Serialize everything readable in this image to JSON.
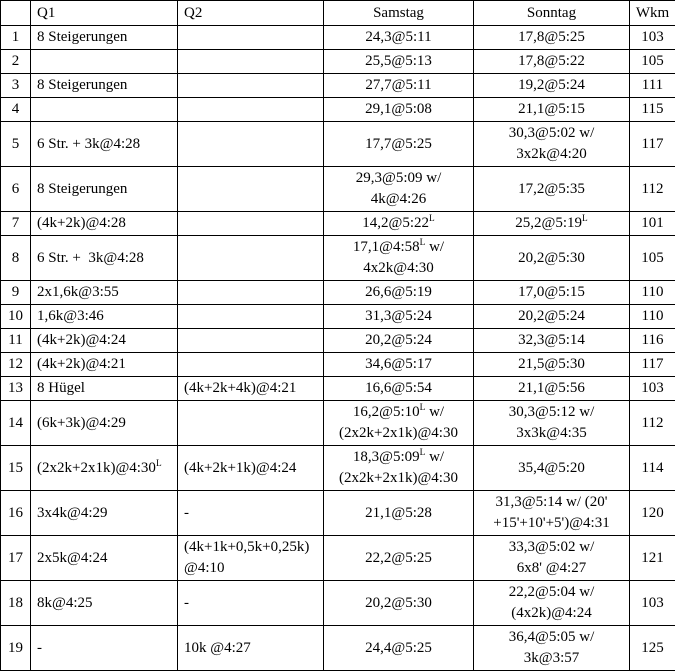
{
  "table": {
    "headers": [
      "",
      "Q1",
      "Q2",
      "Samstag",
      "Sonntag",
      "Wkm"
    ],
    "rows": [
      {
        "num": "1",
        "q1": "8 Steigerungen",
        "q2": "",
        "samstag": "24,3@5:11",
        "sonntag": "17,8@5:25",
        "wkm": "103"
      },
      {
        "num": "2",
        "q1": "",
        "q2": "",
        "samstag": "25,5@5:13",
        "sonntag": "17,8@5:22",
        "wkm": "105"
      },
      {
        "num": "3",
        "q1": "8 Steigerungen",
        "q2": "",
        "samstag": "27,7@5:11",
        "sonntag": "19,2@5:24",
        "wkm": "111"
      },
      {
        "num": "4",
        "q1": "",
        "q2": "",
        "samstag": "29,1@5:08",
        "sonntag": "21,1@5:15",
        "wkm": "115"
      },
      {
        "num": "5",
        "q1": "6 Str. + 3k@4:28",
        "q2": "",
        "samstag": "17,7@5:25",
        "sonntag": "30,3@5:02 w/\n3x2k@4:20",
        "wkm": "117"
      },
      {
        "num": "6",
        "q1": "8 Steigerungen",
        "q2": "",
        "samstag": "29,3@5:09 w/\n4k@4:26",
        "sonntag": "17,2@5:35",
        "wkm": "112"
      },
      {
        "num": "7",
        "q1": "(4k+2k)@4:28",
        "q2": "",
        "samstag": "14,2@5:22^L",
        "sonntag": "25,2@5:19^L",
        "wkm": "101"
      },
      {
        "num": "8",
        "q1": "6 Str. +  3k@4:28",
        "q2": "",
        "samstag": "17,1@4:58^L w/\n4x2k@4:30",
        "sonntag": "20,2@5:30",
        "wkm": "105"
      },
      {
        "num": "9",
        "q1": "2x1,6k@3:55",
        "q2": "",
        "samstag": "26,6@5:19",
        "sonntag": "17,0@5:15",
        "wkm": "110"
      },
      {
        "num": "10",
        "q1": "1,6k@3:46",
        "q2": "",
        "samstag": "31,3@5:24",
        "sonntag": "20,2@5:24",
        "wkm": "110"
      },
      {
        "num": "11",
        "q1": "(4k+2k)@4:24",
        "q2": "",
        "samstag": "20,2@5:24",
        "sonntag": "32,3@5:14",
        "wkm": "116"
      },
      {
        "num": "12",
        "q1": "(4k+2k)@4:21",
        "q2": "",
        "samstag": "34,6@5:17",
        "sonntag": "21,5@5:30",
        "wkm": "117"
      },
      {
        "num": "13",
        "q1": "8 Hügel",
        "q2": "(4k+2k+4k)@4:21",
        "samstag": "16,6@5:54",
        "sonntag": "21,1@5:56",
        "wkm": "103"
      },
      {
        "num": "14",
        "q1": "(6k+3k)@4:29",
        "q2": "",
        "samstag": "16,2@5:10^L w/\n(2x2k+2x1k)@4:30",
        "sonntag": "30,3@5:12 w/\n3x3k@4:35",
        "wkm": "112"
      },
      {
        "num": "15",
        "q1": "(2x2k+2x1k)@4:30^L",
        "q2": "(4k+2k+1k)@4:24",
        "samstag": "18,3@5:09^L w/\n(2x2k+2x1k)@4:30",
        "sonntag": "35,4@5:20",
        "wkm": "114"
      },
      {
        "num": "16",
        "q1": "3x4k@4:29",
        "q2": "-",
        "samstag": "21,1@5:28",
        "sonntag": "31,3@5:14 w/ (20'\n+15'+10'+5')@4:31",
        "wkm": "120"
      },
      {
        "num": "17",
        "q1": "2x5k@4:24",
        "q2": "(4k+1k+0,5k+0,25k)\n@4:10",
        "samstag": "22,2@5:25",
        "sonntag": "33,3@5:02 w/\n6x8' @4:27",
        "wkm": "121"
      },
      {
        "num": "18",
        "q1": "8k@4:25",
        "q2": "-",
        "samstag": "20,2@5:30",
        "sonntag": "22,2@5:04 w/\n(4x2k)@4:24",
        "wkm": "103"
      },
      {
        "num": "19",
        "q1": "-",
        "q2": "10k @4:27",
        "samstag": "24,4@5:25",
        "sonntag": "36,4@5:05 w/\n3k@3:57",
        "wkm": "125"
      }
    ]
  }
}
